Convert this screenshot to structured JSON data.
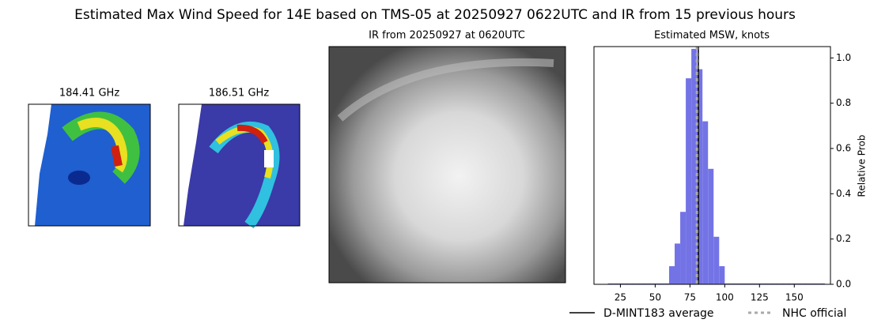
{
  "title": "Estimated Max Wind Speed for 14E based on TMS-05 at 20250927 0622UTC and IR from 15 previous hours",
  "panels": [
    {
      "title": "184.41 GHz"
    },
    {
      "title": "186.51 GHz"
    },
    {
      "title": "IR from 20250927 at 0620UTC"
    }
  ],
  "chart_data": {
    "type": "histogram",
    "title": "Estimated MSW, knots",
    "y_label": "Relative Prob",
    "bins": [
      16,
      20,
      24,
      28,
      32,
      36,
      40,
      44,
      48,
      52,
      56,
      60,
      64,
      68,
      72,
      76,
      80,
      84,
      88,
      92,
      96,
      100,
      104,
      108,
      112,
      116,
      120,
      124,
      128,
      132,
      136,
      140,
      144,
      148,
      152,
      156,
      160,
      164,
      168,
      172
    ],
    "values": [
      0.004,
      0.004,
      0.004,
      0.004,
      0.004,
      0.004,
      0.004,
      0.004,
      0.004,
      0.004,
      0.004,
      0.08,
      0.18,
      0.32,
      0.91,
      1.04,
      0.95,
      0.72,
      0.51,
      0.21,
      0.08,
      0.004,
      0.004,
      0.004,
      0.004,
      0.004,
      0.004,
      0.004,
      0.004,
      0.004,
      0.004,
      0.004,
      0.004,
      0.004,
      0.004,
      0.004,
      0.004,
      0.004,
      0.004
    ],
    "color": "#7373e6",
    "xlim": [
      6,
      176
    ],
    "xticks": [
      25,
      50,
      75,
      100,
      125,
      150
    ],
    "ylim": [
      0,
      1.05
    ],
    "yticks": [
      {
        "value": 0,
        "label": "0.0"
      },
      0.2,
      0.4,
      0.6,
      0.8,
      {
        "value": 1,
        "label": "1.0"
      }
    ],
    "lines": [
      {
        "name": "D-MINT183 average",
        "color": "#000000",
        "value": 81,
        "style": "solid"
      },
      {
        "name": "NHC official",
        "color": "#aaaaaa",
        "value": 80,
        "style": "dotted"
      }
    ],
    "legend": "bottom-right"
  }
}
